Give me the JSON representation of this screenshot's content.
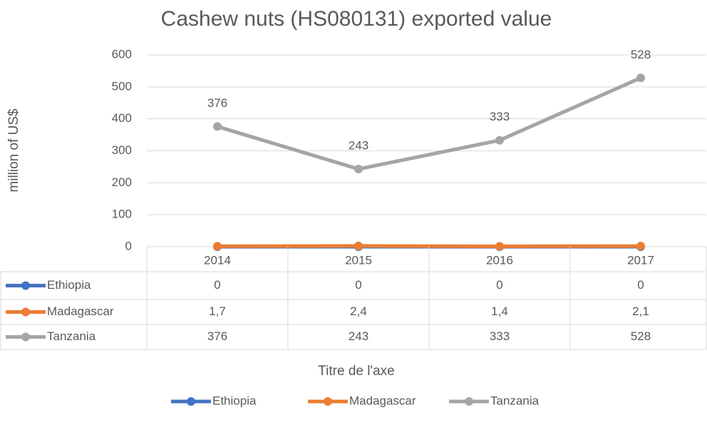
{
  "chart_data": {
    "type": "line",
    "title": "Cashew nuts (HS080131) exported value",
    "y_label": "million of US$",
    "x_label": "Titre de l'axe",
    "categories": [
      "2014",
      "2015",
      "2016",
      "2017"
    ],
    "series": [
      {
        "name": "Ethiopia",
        "color": "#4472c4",
        "values": [
          0,
          0,
          0,
          0
        ]
      },
      {
        "name": "Madagascar",
        "color": "#ed7d31",
        "values": [
          1.7,
          2.4,
          1.4,
          2.1
        ],
        "value_labels": [
          "1,7",
          "2,4",
          "1,4",
          "2,1"
        ]
      },
      {
        "name": "Tanzania",
        "color": "#a5a5a5",
        "values": [
          376,
          243,
          333,
          528
        ],
        "data_labels": true
      }
    ],
    "ylim": [
      0,
      600
    ],
    "yticks": [
      0,
      100,
      200,
      300,
      400,
      500,
      600
    ],
    "grid": true,
    "data_table": true,
    "legend": "bottom"
  }
}
